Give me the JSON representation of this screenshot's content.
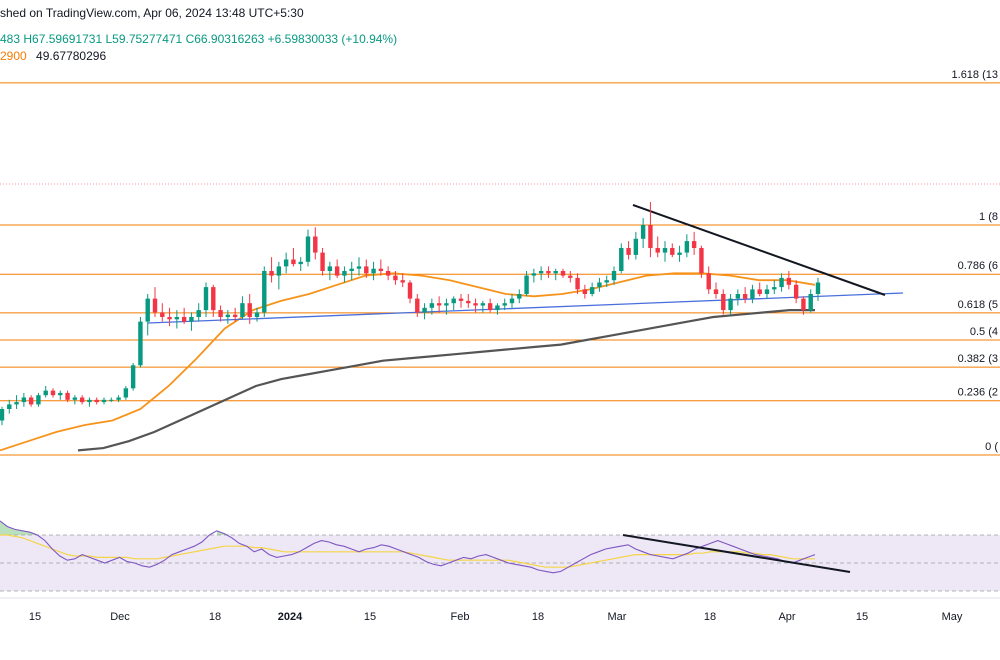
{
  "header": {
    "published": "shed on TradingView.com, Apr 06, 2024 13:48 UTC+5:30",
    "ohlc_prefix": "483",
    "high": "H67.59691731",
    "low": "L59.75277471",
    "close": "C66.90316263",
    "change": "+6.59830033 (+10.94%)",
    "ma_fragment": "2900",
    "ma_value": "49.67780296"
  },
  "colors": {
    "up": "#089981",
    "down": "#f23645",
    "fib": "#f57c00",
    "ma_fast": "#f7931a",
    "ma_slow": "#555555",
    "support": "#4a6fdc",
    "resistance": "#131722",
    "rsi": "#7e57c2",
    "rsi_ma": "#f5d547",
    "rsi_band": "#ede7f6"
  },
  "chart_data": [
    {
      "type": "candlestick",
      "fib_levels": [
        {
          "label": "1.618 (13",
          "value": 1.618
        },
        {
          "label": "1 (8",
          "value": 1
        },
        {
          "label": "0.786 (6",
          "value": 0.786
        },
        {
          "label": "0.618 (5",
          "value": 0.618
        },
        {
          "label": "0.5 (4",
          "value": 0.5
        },
        {
          "label": "0.382 (3",
          "value": 0.382
        },
        {
          "label": "0.236 (2",
          "value": 0.236
        },
        {
          "label": "0 (",
          "value": 0
        }
      ],
      "candles": [
        [
          0.15,
          0.21,
          0.13,
          0.2
        ],
        [
          0.2,
          0.24,
          0.18,
          0.22
        ],
        [
          0.22,
          0.26,
          0.2,
          0.23
        ],
        [
          0.23,
          0.27,
          0.21,
          0.25
        ],
        [
          0.25,
          0.26,
          0.21,
          0.22
        ],
        [
          0.22,
          0.27,
          0.21,
          0.26
        ],
        [
          0.26,
          0.3,
          0.25,
          0.28
        ],
        [
          0.28,
          0.29,
          0.25,
          0.26
        ],
        [
          0.26,
          0.28,
          0.24,
          0.27
        ],
        [
          0.27,
          0.28,
          0.23,
          0.24
        ],
        [
          0.24,
          0.26,
          0.22,
          0.25
        ],
        [
          0.25,
          0.26,
          0.22,
          0.23
        ],
        [
          0.23,
          0.25,
          0.21,
          0.24
        ],
        [
          0.24,
          0.25,
          0.22,
          0.23
        ],
        [
          0.23,
          0.25,
          0.22,
          0.24
        ],
        [
          0.24,
          0.25,
          0.23,
          0.24
        ],
        [
          0.24,
          0.26,
          0.23,
          0.25
        ],
        [
          0.25,
          0.3,
          0.24,
          0.29
        ],
        [
          0.29,
          0.4,
          0.28,
          0.39
        ],
        [
          0.39,
          0.6,
          0.38,
          0.58
        ],
        [
          0.58,
          0.7,
          0.52,
          0.68
        ],
        [
          0.68,
          0.73,
          0.6,
          0.62
        ],
        [
          0.62,
          0.66,
          0.58,
          0.6
        ],
        [
          0.6,
          0.64,
          0.56,
          0.59
        ],
        [
          0.59,
          0.63,
          0.55,
          0.6
        ],
        [
          0.6,
          0.64,
          0.57,
          0.58
        ],
        [
          0.58,
          0.62,
          0.54,
          0.6
        ],
        [
          0.6,
          0.66,
          0.58,
          0.63
        ],
        [
          0.63,
          0.75,
          0.6,
          0.73
        ],
        [
          0.73,
          0.74,
          0.6,
          0.63
        ],
        [
          0.63,
          0.65,
          0.58,
          0.6
        ],
        [
          0.6,
          0.63,
          0.57,
          0.61
        ],
        [
          0.61,
          0.64,
          0.58,
          0.6
        ],
        [
          0.6,
          0.69,
          0.59,
          0.66
        ],
        [
          0.66,
          0.7,
          0.57,
          0.6
        ],
        [
          0.6,
          0.64,
          0.58,
          0.62
        ],
        [
          0.62,
          0.82,
          0.6,
          0.8
        ],
        [
          0.8,
          0.86,
          0.75,
          0.78
        ],
        [
          0.78,
          0.84,
          0.72,
          0.82
        ],
        [
          0.82,
          0.88,
          0.79,
          0.85
        ],
        [
          0.85,
          0.9,
          0.82,
          0.83
        ],
        [
          0.83,
          0.86,
          0.8,
          0.84
        ],
        [
          0.84,
          0.98,
          0.82,
          0.95
        ],
        [
          0.95,
          0.99,
          0.85,
          0.88
        ],
        [
          0.88,
          0.9,
          0.78,
          0.8
        ],
        [
          0.8,
          0.84,
          0.76,
          0.82
        ],
        [
          0.82,
          0.85,
          0.77,
          0.78
        ],
        [
          0.78,
          0.82,
          0.75,
          0.8
        ],
        [
          0.8,
          0.84,
          0.76,
          0.81
        ],
        [
          0.81,
          0.86,
          0.78,
          0.82
        ],
        [
          0.82,
          0.85,
          0.77,
          0.79
        ],
        [
          0.79,
          0.84,
          0.76,
          0.81
        ],
        [
          0.81,
          0.85,
          0.78,
          0.8
        ],
        [
          0.8,
          0.82,
          0.76,
          0.78
        ],
        [
          0.78,
          0.8,
          0.74,
          0.76
        ],
        [
          0.76,
          0.79,
          0.73,
          0.75
        ],
        [
          0.75,
          0.76,
          0.66,
          0.68
        ],
        [
          0.68,
          0.7,
          0.6,
          0.62
        ],
        [
          0.62,
          0.66,
          0.59,
          0.64
        ],
        [
          0.64,
          0.68,
          0.61,
          0.66
        ],
        [
          0.66,
          0.69,
          0.62,
          0.65
        ],
        [
          0.65,
          0.68,
          0.61,
          0.66
        ],
        [
          0.66,
          0.69,
          0.63,
          0.68
        ],
        [
          0.68,
          0.7,
          0.64,
          0.67
        ],
        [
          0.67,
          0.7,
          0.64,
          0.66
        ],
        [
          0.66,
          0.68,
          0.62,
          0.65
        ],
        [
          0.65,
          0.67,
          0.62,
          0.66
        ],
        [
          0.66,
          0.68,
          0.62,
          0.63
        ],
        [
          0.63,
          0.66,
          0.61,
          0.65
        ],
        [
          0.65,
          0.68,
          0.63,
          0.66
        ],
        [
          0.66,
          0.7,
          0.64,
          0.68
        ],
        [
          0.68,
          0.72,
          0.66,
          0.7
        ],
        [
          0.7,
          0.8,
          0.69,
          0.78
        ],
        [
          0.78,
          0.81,
          0.75,
          0.79
        ],
        [
          0.79,
          0.82,
          0.76,
          0.8
        ],
        [
          0.8,
          0.82,
          0.77,
          0.79
        ],
        [
          0.79,
          0.81,
          0.76,
          0.8
        ],
        [
          0.8,
          0.81,
          0.77,
          0.78
        ],
        [
          0.78,
          0.8,
          0.75,
          0.77
        ],
        [
          0.77,
          0.79,
          0.7,
          0.72
        ],
        [
          0.72,
          0.74,
          0.68,
          0.7
        ],
        [
          0.7,
          0.75,
          0.69,
          0.73
        ],
        [
          0.73,
          0.77,
          0.71,
          0.75
        ],
        [
          0.75,
          0.78,
          0.73,
          0.76
        ],
        [
          0.76,
          0.82,
          0.74,
          0.8
        ],
        [
          0.8,
          0.92,
          0.79,
          0.9
        ],
        [
          0.9,
          0.93,
          0.85,
          0.87
        ],
        [
          0.87,
          0.97,
          0.85,
          0.94
        ],
        [
          0.94,
          1.03,
          0.9,
          1.0
        ],
        [
          1.0,
          1.1,
          0.86,
          0.9
        ],
        [
          0.9,
          0.95,
          0.86,
          0.88
        ],
        [
          0.88,
          0.93,
          0.84,
          0.9
        ],
        [
          0.9,
          0.92,
          0.86,
          0.87
        ],
        [
          0.87,
          0.91,
          0.84,
          0.88
        ],
        [
          0.88,
          0.96,
          0.86,
          0.93
        ],
        [
          0.93,
          0.97,
          0.87,
          0.9
        ],
        [
          0.9,
          0.91,
          0.77,
          0.79
        ],
        [
          0.79,
          0.82,
          0.7,
          0.72
        ],
        [
          0.72,
          0.75,
          0.68,
          0.7
        ],
        [
          0.7,
          0.72,
          0.61,
          0.63
        ],
        [
          0.63,
          0.7,
          0.61,
          0.68
        ],
        [
          0.68,
          0.72,
          0.65,
          0.7
        ],
        [
          0.7,
          0.73,
          0.66,
          0.68
        ],
        [
          0.68,
          0.74,
          0.66,
          0.72
        ],
        [
          0.72,
          0.75,
          0.69,
          0.7
        ],
        [
          0.7,
          0.74,
          0.68,
          0.72
        ],
        [
          0.72,
          0.76,
          0.7,
          0.73
        ],
        [
          0.73,
          0.79,
          0.71,
          0.77
        ],
        [
          0.77,
          0.8,
          0.72,
          0.74
        ],
        [
          0.74,
          0.76,
          0.66,
          0.68
        ],
        [
          0.68,
          0.69,
          0.61,
          0.63
        ],
        [
          0.63,
          0.72,
          0.62,
          0.7
        ],
        [
          0.7,
          0.77,
          0.67,
          0.75
        ]
      ],
      "ma_fast": [
        0.02,
        0.06,
        0.1,
        0.13,
        0.15,
        0.2,
        0.3,
        0.42,
        0.55,
        0.63,
        0.67,
        0.7,
        0.74,
        0.78,
        0.79,
        0.78,
        0.76,
        0.73,
        0.7,
        0.69,
        0.7,
        0.72,
        0.75,
        0.78,
        0.79,
        0.79,
        0.78,
        0.76,
        0.76,
        0.74
      ],
      "ma_slow": [
        0.02,
        0.03,
        0.06,
        0.1,
        0.15,
        0.2,
        0.25,
        0.3,
        0.33,
        0.35,
        0.37,
        0.39,
        0.41,
        0.42,
        0.43,
        0.44,
        0.45,
        0.46,
        0.47,
        0.48,
        0.5,
        0.52,
        0.54,
        0.56,
        0.58,
        0.6,
        0.61,
        0.62,
        0.63,
        0.63
      ],
      "rsi": [
        80,
        76,
        74,
        73,
        72,
        70,
        66,
        60,
        55,
        52,
        53,
        56,
        54,
        52,
        50,
        52,
        54,
        51,
        50,
        48,
        47,
        49,
        52,
        56,
        58,
        60,
        62,
        65,
        70,
        73,
        71,
        68,
        64,
        62,
        58,
        60,
        56,
        54,
        55,
        56,
        58,
        61,
        64,
        66,
        65,
        63,
        62,
        60,
        58,
        60,
        61,
        63,
        62,
        60,
        58,
        56,
        54,
        51,
        49,
        48,
        50,
        52,
        54,
        53,
        55,
        56,
        54,
        52,
        50,
        49,
        48,
        47,
        45,
        44,
        43,
        44,
        47,
        50,
        53,
        56,
        58,
        60,
        61,
        62,
        63,
        60,
        58,
        56,
        55,
        54,
        53,
        55,
        57,
        60,
        62,
        64,
        66,
        64,
        62,
        60,
        58,
        56,
        55,
        54,
        53,
        51,
        50,
        52,
        54,
        56
      ],
      "rsi_ma": [
        70,
        70,
        69,
        68,
        66,
        64,
        62,
        60,
        58,
        56,
        55,
        55,
        55,
        54,
        54,
        54,
        54,
        54,
        53,
        53,
        53,
        53,
        54,
        55,
        56,
        57,
        58,
        59,
        60,
        61,
        62,
        62,
        62,
        62,
        61,
        61,
        60,
        59,
        58,
        58,
        58,
        58,
        58,
        58,
        58,
        58,
        58,
        58,
        58,
        58,
        58,
        58,
        58,
        58,
        58,
        57,
        56,
        55,
        54,
        53,
        52,
        52,
        52,
        52,
        52,
        52,
        52,
        52,
        52,
        51,
        50,
        49,
        48,
        47,
        47,
        47,
        47,
        48,
        49,
        50,
        51,
        52,
        53,
        54,
        55,
        56,
        56,
        56,
        56,
        56,
        56,
        56,
        56,
        57,
        57,
        58,
        58,
        58,
        58,
        58,
        57,
        57,
        56,
        56,
        55,
        54,
        53,
        53,
        53,
        53
      ]
    }
  ],
  "xaxis": {
    "ticks": [
      {
        "label": "15",
        "pos": 0.035
      },
      {
        "label": "Dec",
        "pos": 0.12
      },
      {
        "label": "18",
        "pos": 0.215
      },
      {
        "label": "2024",
        "pos": 0.29
      },
      {
        "label": "15",
        "pos": 0.37
      },
      {
        "label": "Feb",
        "pos": 0.46
      },
      {
        "label": "18",
        "pos": 0.538
      },
      {
        "label": "Mar",
        "pos": 0.617
      },
      {
        "label": "18",
        "pos": 0.71
      },
      {
        "label": "Apr",
        "pos": 0.787
      },
      {
        "label": "15",
        "pos": 0.862
      },
      {
        "label": "May",
        "pos": 0.952
      }
    ]
  }
}
